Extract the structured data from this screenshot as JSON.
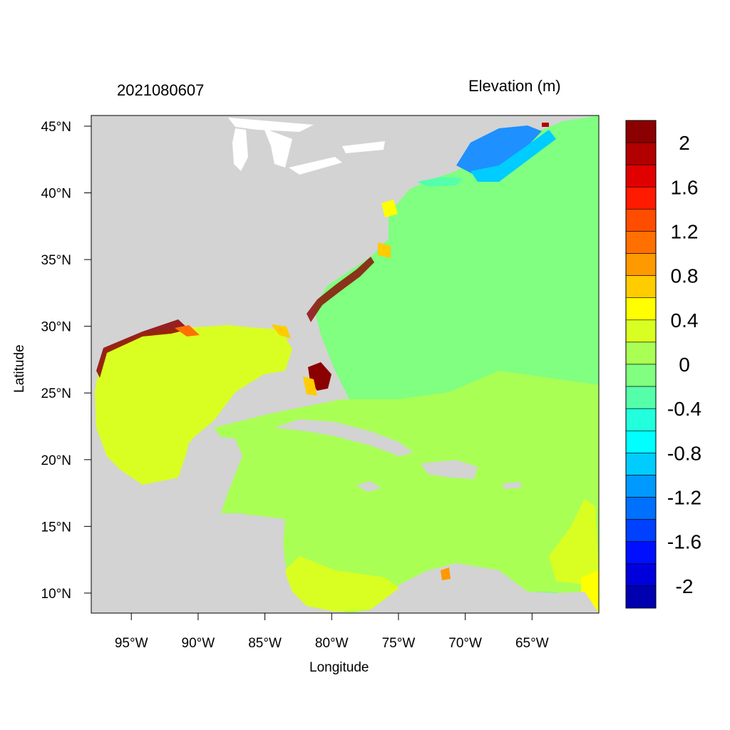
{
  "title_left": "2021080607",
  "title_right": "Elevation (m)",
  "xlabel": "Longitude",
  "ylabel": "Latitude",
  "x_ticks": [
    {
      "value": -95,
      "label": "95°W"
    },
    {
      "value": -90,
      "label": "90°W"
    },
    {
      "value": -85,
      "label": "85°W"
    },
    {
      "value": -80,
      "label": "80°W"
    },
    {
      "value": -75,
      "label": "75°W"
    },
    {
      "value": -70,
      "label": "70°W"
    },
    {
      "value": -65,
      "label": "65°W"
    }
  ],
  "y_ticks": [
    {
      "value": 45,
      "label": "45°N"
    },
    {
      "value": 40,
      "label": "40°N"
    },
    {
      "value": 35,
      "label": "35°N"
    },
    {
      "value": 30,
      "label": "30°N"
    },
    {
      "value": 25,
      "label": "25°N"
    },
    {
      "value": 20,
      "label": "20°N"
    },
    {
      "value": 15,
      "label": "15°N"
    },
    {
      "value": 10,
      "label": "10°N"
    }
  ],
  "extent": {
    "lon": [
      -98,
      -60
    ],
    "lat": [
      8.5,
      45.8
    ]
  },
  "colors": {
    "land": "#d3d3d3",
    "atlantic": "#80ff80",
    "caribbean": "#aaff55",
    "gulf": "#d9ff22",
    "negative_gulf_maine": "#1e90ff",
    "surge_high": "#8b0000"
  },
  "colorbar": {
    "levels": [
      {
        "color": "#8b0000"
      },
      {
        "color": "#b20000"
      },
      {
        "color": "#e00000"
      },
      {
        "color": "#ff1a00"
      },
      {
        "color": "#ff4d00"
      },
      {
        "color": "#ff7000"
      },
      {
        "color": "#ff9900"
      },
      {
        "color": "#ffcc00"
      },
      {
        "color": "#ffff00"
      },
      {
        "color": "#d9ff22"
      },
      {
        "color": "#aaff55"
      },
      {
        "color": "#80ff80"
      },
      {
        "color": "#55ffaa"
      },
      {
        "color": "#22ffdd"
      },
      {
        "color": "#00ffff"
      },
      {
        "color": "#00ccff"
      },
      {
        "color": "#0099ff"
      },
      {
        "color": "#0070ff"
      },
      {
        "color": "#0040ff"
      },
      {
        "color": "#0010ff"
      },
      {
        "color": "#0000dd"
      },
      {
        "color": "#0000b0"
      }
    ],
    "labels": [
      "2",
      "1.6",
      "1.2",
      "0.8",
      "0.4",
      "0",
      "-0.4",
      "-0.8",
      "-1.2",
      "-1.6",
      "-2"
    ]
  }
}
